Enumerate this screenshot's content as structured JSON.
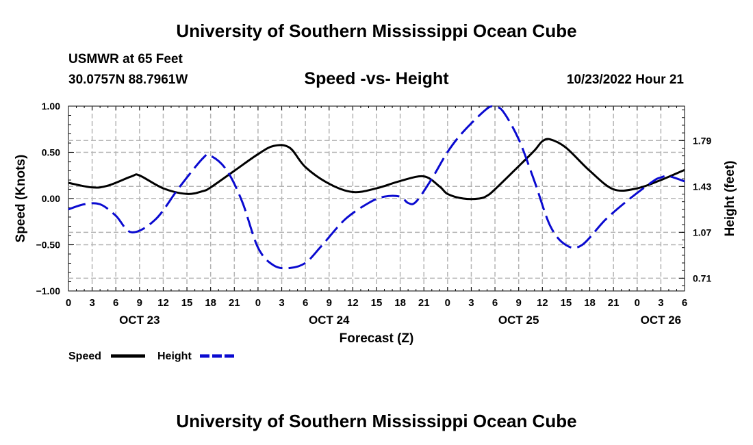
{
  "page": {
    "main_title": "University of Southern Mississippi Ocean Cube",
    "footer_title": "University of Southern Mississippi Ocean Cube",
    "station_name": "USMWR at 65 Feet",
    "station_coords": "30.0757N  88.7961W",
    "date_label": "10/23/2022 Hour 21"
  },
  "colors": {
    "speed": "#000000",
    "height": "#0a0ad0",
    "grid": "#b4b4b4"
  },
  "chart_data": {
    "type": "line",
    "title": "Speed -vs- Height",
    "xlabel": "Forecast (Z)",
    "ylabel": "Speed (Knots)",
    "y2label": "Height (feet)",
    "x_range_hours": [
      0,
      78
    ],
    "ylim": [
      -1.0,
      1.0
    ],
    "y_ticks": [
      "1.00",
      "0.50",
      "0.00",
      "−0.50",
      "−1.00"
    ],
    "y_tick_values": [
      1.0,
      0.5,
      0.0,
      -0.5,
      -1.0
    ],
    "y2lim": [
      0.61,
      2.06
    ],
    "y2_ticks": [
      "1.79",
      "1.43",
      "1.07",
      "0.71"
    ],
    "y2_tick_values": [
      1.79,
      1.43,
      1.07,
      0.71
    ],
    "x_tick_labels": [
      "0",
      "3",
      "6",
      "9",
      "12",
      "15",
      "18",
      "21",
      "0",
      "3",
      "6",
      "9",
      "12",
      "15",
      "18",
      "21",
      "0",
      "3",
      "6",
      "9",
      "12",
      "15",
      "18",
      "21",
      "0",
      "3",
      "6"
    ],
    "date_labels": [
      {
        "label": "OCT 23",
        "hour": 9
      },
      {
        "label": "OCT 24",
        "hour": 33
      },
      {
        "label": "OCT 25",
        "hour": 57
      },
      {
        "label": "OCT 26",
        "hour": 75
      }
    ],
    "grid": true,
    "legend_position": "bottom-left",
    "series": [
      {
        "name": "Speed",
        "axis": "left",
        "style": "solid",
        "x": [
          0,
          3,
          5,
          8,
          9,
          12,
          15,
          17,
          18,
          21,
          24,
          26,
          28,
          30,
          33,
          36,
          39,
          42,
          45,
          47,
          48,
          50,
          52,
          53,
          54,
          57,
          59,
          60,
          61,
          63,
          66,
          69,
          72,
          75,
          78
        ],
        "y": [
          0.17,
          0.12,
          0.14,
          0.24,
          0.25,
          0.11,
          0.05,
          0.08,
          0.12,
          0.3,
          0.48,
          0.57,
          0.55,
          0.34,
          0.16,
          0.07,
          0.11,
          0.19,
          0.24,
          0.13,
          0.05,
          0.0,
          0.0,
          0.03,
          0.1,
          0.35,
          0.52,
          0.62,
          0.64,
          0.55,
          0.3,
          0.1,
          0.11,
          0.2,
          0.31
        ]
      },
      {
        "name": "Height",
        "axis": "right",
        "style": "dashed",
        "x": [
          0,
          2,
          4,
          6,
          8,
          11,
          14,
          17,
          18,
          20,
          22,
          24,
          26,
          28,
          30,
          32,
          35,
          38,
          40,
          42,
          43,
          44,
          46,
          48,
          50,
          53,
          54,
          55,
          57,
          59,
          61,
          63,
          65,
          68,
          71,
          74,
          75,
          76,
          78
        ],
        "y": [
          1.25,
          1.29,
          1.29,
          1.2,
          1.07,
          1.17,
          1.42,
          1.65,
          1.67,
          1.56,
          1.31,
          0.95,
          0.81,
          0.79,
          0.83,
          0.96,
          1.17,
          1.3,
          1.35,
          1.35,
          1.3,
          1.31,
          1.49,
          1.7,
          1.86,
          2.04,
          2.05,
          2.02,
          1.8,
          1.47,
          1.12,
          0.97,
          0.97,
          1.17,
          1.33,
          1.47,
          1.5,
          1.51,
          1.47
        ]
      }
    ]
  }
}
